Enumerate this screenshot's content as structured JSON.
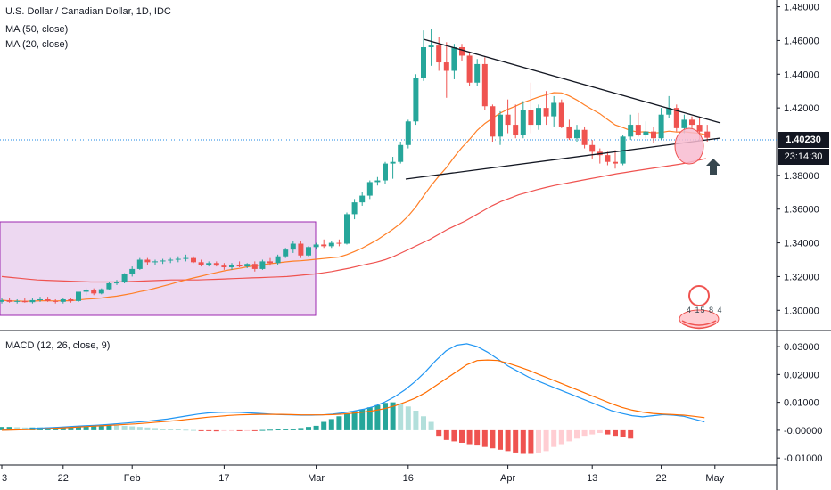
{
  "legend": {
    "title": "U.S. Dollar / Canadian Dollar, 1D, IDC",
    "ma50": "MA (50, close)",
    "ma20": "MA (20, close)",
    "macd": "MACD (12, 26, close, 9)"
  },
  "price_tag": {
    "last_price": "1.40230",
    "countdown": "23:14:30"
  },
  "watermark": {
    "glyph": "4 15 8 4"
  },
  "colors": {
    "up": "#26a69a",
    "down": "#ef5350",
    "ma50": "#ef5350",
    "ma20": "#ff7f27",
    "macd_line": "#2196f3",
    "signal_line": "#ff6d00",
    "box_fill": "#e1bee7",
    "box_stroke": "#9c27b0",
    "trendline": "#131722",
    "hist_up_strong": "#26a69a",
    "hist_up_weak": "#b2dfdb",
    "hist_down_strong": "#ef5350",
    "hist_down_weak": "#ffcdd2",
    "price_tag_bg": "#131722",
    "countdown_bg": "#131722"
  },
  "chart_data": [
    {
      "type": "candlestick",
      "title": "U.S. Dollar / Canadian Dollar, 1D, IDC",
      "x_tick_labels": [
        "3",
        "22",
        "Feb",
        "17",
        "Mar",
        "16",
        "Apr",
        "13",
        "22",
        "May"
      ],
      "y_tick_labels": [
        "1.48000",
        "1.46000",
        "1.44000",
        "1.42000",
        "1.38000",
        "1.36000",
        "1.34000",
        "1.32000",
        "1.30000"
      ],
      "ylim": [
        1.288,
        1.484
      ],
      "last_price": 1.4023,
      "candles": [
        [
          1.305,
          1.307,
          1.304,
          1.306
        ],
        [
          1.306,
          1.3075,
          1.3045,
          1.305
        ],
        [
          1.305,
          1.3065,
          1.304,
          1.3055
        ],
        [
          1.3055,
          1.307,
          1.3045,
          1.3048
        ],
        [
          1.3048,
          1.307,
          1.304,
          1.306
        ],
        [
          1.306,
          1.308,
          1.305,
          1.3065
        ],
        [
          1.3065,
          1.308,
          1.305,
          1.3055
        ],
        [
          1.3055,
          1.3065,
          1.304,
          1.305
        ],
        [
          1.305,
          1.307,
          1.304,
          1.3065
        ],
        [
          1.3065,
          1.307,
          1.3045,
          1.3055
        ],
        [
          1.3055,
          1.311,
          1.305,
          1.311
        ],
        [
          1.311,
          1.313,
          1.309,
          1.312
        ],
        [
          1.312,
          1.313,
          1.309,
          1.31
        ],
        [
          1.31,
          1.313,
          1.3095,
          1.3125
        ],
        [
          1.3125,
          1.317,
          1.312,
          1.316
        ],
        [
          1.316,
          1.318,
          1.315,
          1.3165
        ],
        [
          1.3165,
          1.322,
          1.316,
          1.3215
        ],
        [
          1.3215,
          1.326,
          1.32,
          1.3245
        ],
        [
          1.3245,
          1.331,
          1.324,
          1.33
        ],
        [
          1.33,
          1.331,
          1.327,
          1.3285
        ],
        [
          1.3285,
          1.33,
          1.327,
          1.329
        ],
        [
          1.329,
          1.3305,
          1.3275,
          1.3295
        ],
        [
          1.3295,
          1.331,
          1.328,
          1.33
        ],
        [
          1.33,
          1.332,
          1.3285,
          1.3305
        ],
        [
          1.3305,
          1.333,
          1.329,
          1.331
        ],
        [
          1.331,
          1.332,
          1.328,
          1.3285
        ],
        [
          1.3285,
          1.33,
          1.326,
          1.327
        ],
        [
          1.327,
          1.329,
          1.326,
          1.328
        ],
        [
          1.328,
          1.329,
          1.326,
          1.3265
        ],
        [
          1.3265,
          1.328,
          1.324,
          1.3255
        ],
        [
          1.3255,
          1.328,
          1.324,
          1.327
        ],
        [
          1.327,
          1.329,
          1.3255,
          1.326
        ],
        [
          1.326,
          1.328,
          1.325,
          1.3275
        ],
        [
          1.3275,
          1.329,
          1.323,
          1.3245
        ],
        [
          1.3245,
          1.33,
          1.324,
          1.329
        ],
        [
          1.329,
          1.331,
          1.3265,
          1.328
        ],
        [
          1.328,
          1.333,
          1.327,
          1.332
        ],
        [
          1.332,
          1.337,
          1.331,
          1.336
        ],
        [
          1.336,
          1.341,
          1.334,
          1.3395
        ],
        [
          1.3395,
          1.341,
          1.331,
          1.3325
        ],
        [
          1.3325,
          1.338,
          1.332,
          1.3375
        ],
        [
          1.3375,
          1.34,
          1.336,
          1.339
        ],
        [
          1.339,
          1.342,
          1.337,
          1.338
        ],
        [
          1.338,
          1.341,
          1.337,
          1.34
        ],
        [
          1.34,
          1.342,
          1.338,
          1.3395
        ],
        [
          1.3395,
          1.358,
          1.339,
          1.357
        ],
        [
          1.357,
          1.366,
          1.354,
          1.364
        ],
        [
          1.364,
          1.37,
          1.362,
          1.368
        ],
        [
          1.368,
          1.377,
          1.366,
          1.376
        ],
        [
          1.376,
          1.379,
          1.374,
          1.377
        ],
        [
          1.377,
          1.388,
          1.375,
          1.387
        ],
        [
          1.387,
          1.391,
          1.378,
          1.388
        ],
        [
          1.388,
          1.4,
          1.387,
          1.398
        ],
        [
          1.398,
          1.413,
          1.396,
          1.412
        ],
        [
          1.412,
          1.44,
          1.41,
          1.438
        ],
        [
          1.438,
          1.466,
          1.436,
          1.456
        ],
        [
          1.456,
          1.467,
          1.445,
          1.457
        ],
        [
          1.457,
          1.462,
          1.442,
          1.447
        ],
        [
          1.447,
          1.459,
          1.426,
          1.442
        ],
        [
          1.442,
          1.458,
          1.437,
          1.456
        ],
        [
          1.456,
          1.458,
          1.448,
          1.451
        ],
        [
          1.451,
          1.453,
          1.433,
          1.435
        ],
        [
          1.435,
          1.449,
          1.433,
          1.446
        ],
        [
          1.446,
          1.45,
          1.419,
          1.421
        ],
        [
          1.421,
          1.422,
          1.4,
          1.403
        ],
        [
          1.403,
          1.418,
          1.398,
          1.416
        ],
        [
          1.416,
          1.425,
          1.405,
          1.41
        ],
        [
          1.41,
          1.422,
          1.402,
          1.404
        ],
        [
          1.404,
          1.424,
          1.402,
          1.419
        ],
        [
          1.419,
          1.435,
          1.405,
          1.41
        ],
        [
          1.41,
          1.422,
          1.407,
          1.42
        ],
        [
          1.42,
          1.43,
          1.41,
          1.415
        ],
        [
          1.415,
          1.427,
          1.409,
          1.423
        ],
        [
          1.423,
          1.425,
          1.408,
          1.409
        ],
        [
          1.409,
          1.413,
          1.401,
          1.402
        ],
        [
          1.402,
          1.41,
          1.4,
          1.407
        ],
        [
          1.407,
          1.409,
          1.396,
          1.398
        ],
        [
          1.398,
          1.401,
          1.39,
          1.394
        ],
        [
          1.394,
          1.396,
          1.387,
          1.392
        ],
        [
          1.392,
          1.394,
          1.386,
          1.388
        ],
        [
          1.388,
          1.395,
          1.384,
          1.387
        ],
        [
          1.387,
          1.404,
          1.386,
          1.403
        ],
        [
          1.403,
          1.416,
          1.401,
          1.41
        ],
        [
          1.41,
          1.417,
          1.403,
          1.404
        ],
        [
          1.404,
          1.412,
          1.402,
          1.406
        ],
        [
          1.406,
          1.409,
          1.399,
          1.402
        ],
        [
          1.402,
          1.42,
          1.401,
          1.416
        ],
        [
          1.416,
          1.427,
          1.414,
          1.42
        ],
        [
          1.42,
          1.422,
          1.406,
          1.408
        ],
        [
          1.408,
          1.416,
          1.405,
          1.413
        ],
        [
          1.413,
          1.415,
          1.408,
          1.41
        ],
        [
          1.41,
          1.414,
          1.401,
          1.406
        ],
        [
          1.406,
          1.41,
          1.4,
          1.4023
        ]
      ],
      "ma50": [
        1.32,
        1.3195,
        1.319,
        1.3185,
        1.318,
        1.3178,
        1.3176,
        1.3174,
        1.3172,
        1.317,
        1.3168,
        1.3168,
        1.3168,
        1.3168,
        1.317,
        1.3172,
        1.3174,
        1.3176,
        1.3178,
        1.318,
        1.318,
        1.318,
        1.318,
        1.3182,
        1.3184,
        1.3186,
        1.3188,
        1.319,
        1.3192,
        1.3194,
        1.3196,
        1.3198,
        1.32,
        1.3205,
        1.321,
        1.3215,
        1.3222,
        1.323,
        1.324,
        1.325,
        1.3262,
        1.3274,
        1.3285,
        1.33,
        1.332,
        1.3345,
        1.337,
        1.3395,
        1.342,
        1.345,
        1.348,
        1.3505,
        1.353,
        1.356,
        1.359,
        1.362,
        1.3645,
        1.3665,
        1.3685,
        1.37,
        1.3715,
        1.3728,
        1.374,
        1.375,
        1.376,
        1.377,
        1.378,
        1.379,
        1.38,
        1.381,
        1.3818,
        1.3826,
        1.3834,
        1.3842,
        1.385,
        1.3858,
        1.3866,
        1.3876,
        1.3888,
        1.39
      ]
    },
    {
      "type": "line",
      "title": "MACD (12, 26, close, 9)",
      "y_tick_labels": [
        "0.03000",
        "0.02000",
        "0.01000",
        "-0.00000",
        "-0.01000"
      ],
      "ylim": [
        -0.0125,
        0.0345
      ],
      "series": [
        {
          "values": [
            0.0,
            0.0002,
            0.0004,
            0.0006,
            0.0008,
            0.001,
            0.0012,
            0.0014,
            0.0016,
            0.0018,
            0.002,
            0.0023,
            0.0026,
            0.0029,
            0.0032,
            0.0036,
            0.004,
            0.0046,
            0.0052,
            0.0058,
            0.0062,
            0.0064,
            0.0065,
            0.0064,
            0.0062,
            0.006,
            0.0058,
            0.0056,
            0.0055,
            0.0054,
            0.0054,
            0.0055,
            0.0058,
            0.0062,
            0.0068,
            0.0075,
            0.0085,
            0.01,
            0.012,
            0.0145,
            0.0175,
            0.021,
            0.025,
            0.0285,
            0.0305,
            0.031,
            0.03,
            0.028,
            0.0255,
            0.023,
            0.021,
            0.019,
            0.0175,
            0.016,
            0.0145,
            0.013,
            0.0115,
            0.01,
            0.0085,
            0.007,
            0.006,
            0.0052,
            0.0048,
            0.0052,
            0.0056,
            0.0054,
            0.005,
            0.004,
            0.003
          ]
        },
        {
          "values": [
            0.0,
            0.0001,
            0.0002,
            0.0003,
            0.0005,
            0.0007,
            0.0009,
            0.0011,
            0.0013,
            0.0015,
            0.0017,
            0.0019,
            0.0021,
            0.0023,
            0.0026,
            0.0029,
            0.0032,
            0.0035,
            0.0039,
            0.0043,
            0.0047,
            0.005,
            0.0053,
            0.0055,
            0.0056,
            0.0057,
            0.0057,
            0.0057,
            0.0056,
            0.0055,
            0.0055,
            0.0055,
            0.0056,
            0.0058,
            0.0061,
            0.0065,
            0.007,
            0.0077,
            0.0087,
            0.01,
            0.0115,
            0.0135,
            0.016,
            0.0185,
            0.021,
            0.0235,
            0.025,
            0.0252,
            0.025,
            0.024,
            0.0228,
            0.0215,
            0.02,
            0.0185,
            0.017,
            0.0155,
            0.014,
            0.0125,
            0.011,
            0.0095,
            0.0082,
            0.0072,
            0.0065,
            0.006,
            0.0058,
            0.0056,
            0.0054,
            0.005,
            0.0045
          ]
        }
      ],
      "histogram": [
        0.0012,
        0.0012,
        0.0011,
        0.001,
        0.001,
        0.001,
        0.001,
        0.0011,
        0.0012,
        0.0014,
        0.0015,
        0.0017,
        0.0018,
        0.0019,
        0.002,
        0.0018,
        0.0016,
        0.0014,
        0.0012,
        0.001,
        0.0008,
        0.0006,
        0.0004,
        0.0003,
        0.0002,
        0.0001,
        -0.0002,
        -0.0003,
        -0.0004,
        -0.0003,
        -0.0002,
        -0.0002,
        -0.0001,
        -0.0001,
        0.0001,
        0.0002,
        0.0003,
        0.0004,
        0.0006,
        0.0008,
        0.0012,
        0.0016,
        0.003,
        0.004,
        0.005,
        0.006,
        0.0068,
        0.0075,
        0.0082,
        0.009,
        0.0098,
        0.01,
        0.0095,
        0.0085,
        0.007,
        0.005,
        0.003,
        -0.002,
        -0.0035,
        -0.004,
        -0.0045,
        -0.005,
        -0.0055,
        -0.006,
        -0.0065,
        -0.007,
        -0.0075,
        -0.008,
        -0.0085,
        -0.0085,
        -0.008,
        -0.0075,
        -0.006,
        -0.005,
        -0.004,
        -0.003,
        -0.002,
        -0.0015,
        -0.001,
        -0.0015,
        -0.002,
        -0.0025,
        -0.003
      ]
    }
  ]
}
